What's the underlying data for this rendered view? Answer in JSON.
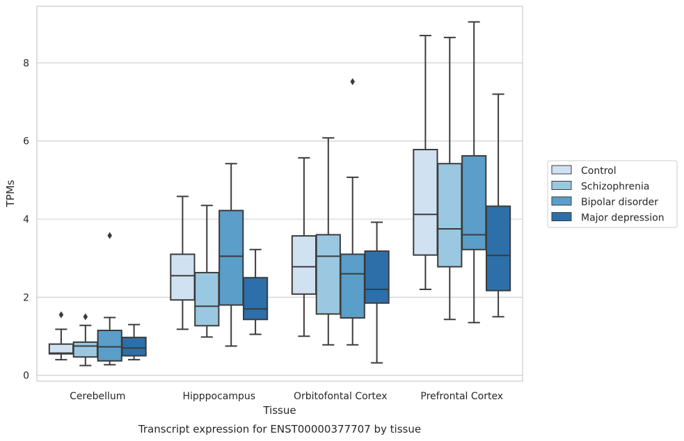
{
  "chart_data": {
    "type": "box",
    "xlabel": "Tissue",
    "ylabel": "TPMs",
    "caption": "Transcript expression for ENST00000377707 by tissue",
    "categories": [
      "Cerebellum",
      "Hipppocampus",
      "Orbitofontal Cortex",
      "Prefrontal Cortex"
    ],
    "ylim": [
      -0.15,
      9.45
    ],
    "yticks": [
      0,
      2,
      4,
      6,
      8
    ],
    "grid": "horizontal",
    "legend_position": "right",
    "series": [
      {
        "name": "Control",
        "color": "#d0e1f2",
        "boxes": [
          {
            "whisker_low": 0.4,
            "q1": 0.55,
            "median": 0.57,
            "q3": 0.8,
            "whisker_high": 1.18,
            "outliers": [
              1.55
            ]
          },
          {
            "whisker_low": 1.18,
            "q1": 1.93,
            "median": 2.55,
            "q3": 3.1,
            "whisker_high": 4.58,
            "outliers": []
          },
          {
            "whisker_low": 1.0,
            "q1": 2.08,
            "median": 2.78,
            "q3": 3.57,
            "whisker_high": 5.57,
            "outliers": []
          },
          {
            "whisker_low": 2.2,
            "q1": 3.08,
            "median": 4.12,
            "q3": 5.78,
            "whisker_high": 8.7,
            "outliers": []
          }
        ]
      },
      {
        "name": "Schizophrenia",
        "color": "#9ac8e0",
        "boxes": [
          {
            "whisker_low": 0.25,
            "q1": 0.47,
            "median": 0.75,
            "q3": 0.85,
            "whisker_high": 1.28,
            "outliers": [
              1.5
            ]
          },
          {
            "whisker_low": 0.98,
            "q1": 1.27,
            "median": 1.77,
            "q3": 2.63,
            "whisker_high": 4.35,
            "outliers": []
          },
          {
            "whisker_low": 0.78,
            "q1": 1.57,
            "median": 3.05,
            "q3": 3.6,
            "whisker_high": 6.08,
            "outliers": []
          },
          {
            "whisker_low": 1.43,
            "q1": 2.78,
            "median": 3.75,
            "q3": 5.42,
            "whisker_high": 8.65,
            "outliers": []
          }
        ]
      },
      {
        "name": "Bipolar disorder",
        "color": "#5a9ec9",
        "boxes": [
          {
            "whisker_low": 0.27,
            "q1": 0.37,
            "median": 0.73,
            "q3": 1.15,
            "whisker_high": 1.48,
            "outliers": [
              3.58
            ]
          },
          {
            "whisker_low": 0.75,
            "q1": 1.8,
            "median": 3.05,
            "q3": 4.22,
            "whisker_high": 5.42,
            "outliers": []
          },
          {
            "whisker_low": 0.78,
            "q1": 1.47,
            "median": 2.6,
            "q3": 3.1,
            "whisker_high": 5.07,
            "outliers": [
              7.52
            ]
          },
          {
            "whisker_low": 1.35,
            "q1": 3.22,
            "median": 3.6,
            "q3": 5.62,
            "whisker_high": 9.05,
            "outliers": []
          }
        ]
      },
      {
        "name": "Major depression",
        "color": "#2d6fa9",
        "boxes": [
          {
            "whisker_low": 0.4,
            "q1": 0.5,
            "median": 0.7,
            "q3": 0.97,
            "whisker_high": 1.3,
            "outliers": []
          },
          {
            "whisker_low": 1.05,
            "q1": 1.43,
            "median": 1.7,
            "q3": 2.5,
            "whisker_high": 3.22,
            "outliers": []
          },
          {
            "whisker_low": 0.32,
            "q1": 1.85,
            "median": 2.2,
            "q3": 3.18,
            "whisker_high": 3.92,
            "outliers": []
          },
          {
            "whisker_low": 1.5,
            "q1": 2.17,
            "median": 3.07,
            "q3": 4.33,
            "whisker_high": 7.2,
            "outliers": []
          }
        ]
      }
    ]
  }
}
